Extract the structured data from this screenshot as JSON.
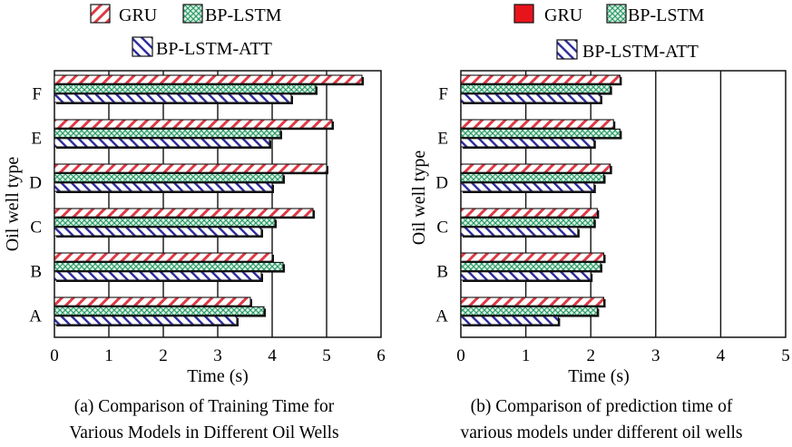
{
  "chart_data": [
    {
      "type": "bar",
      "orientation": "horizontal",
      "categories": [
        "A",
        "B",
        "C",
        "D",
        "E",
        "F"
      ],
      "series": [
        {
          "name": "GRU",
          "values": [
            3.6,
            4.0,
            4.75,
            5.0,
            5.1,
            5.65
          ]
        },
        {
          "name": "BP-LSTM",
          "values": [
            3.85,
            4.2,
            4.05,
            4.2,
            4.15,
            4.8
          ]
        },
        {
          "name": "BP-LSTM-ATT",
          "values": [
            3.35,
            3.8,
            3.8,
            4.0,
            3.95,
            4.35
          ]
        }
      ],
      "xlabel": "Time (s)",
      "ylabel": "Oil well type",
      "xlim": [
        0,
        6
      ],
      "xticks": [
        "0",
        "1",
        "2",
        "3",
        "4",
        "5",
        "6"
      ],
      "grid": "vertical",
      "legend": "top",
      "caption": [
        "(a) Comparison of Training Time for",
        "Various Models in Different Oil Wells"
      ]
    },
    {
      "type": "bar",
      "orientation": "horizontal",
      "categories": [
        "A",
        "B",
        "C",
        "D",
        "E",
        "F"
      ],
      "series": [
        {
          "name": "GRU",
          "values": [
            2.2,
            2.2,
            2.1,
            2.3,
            2.35,
            2.45
          ]
        },
        {
          "name": "BP-LSTM",
          "values": [
            2.1,
            2.15,
            2.05,
            2.2,
            2.45,
            2.3
          ]
        },
        {
          "name": "BP-LSTM-ATT",
          "values": [
            1.5,
            2.0,
            1.8,
            2.05,
            2.05,
            2.15
          ]
        }
      ],
      "xlabel": "Time (s)",
      "ylabel": "Oil well type",
      "xlim": [
        0,
        5
      ],
      "xticks": [
        "0",
        "1",
        "2",
        "3",
        "4",
        "5"
      ],
      "grid": "vertical",
      "legend": "top",
      "caption": [
        "(b) Comparison of prediction time of",
        "various models under different oil wells"
      ]
    }
  ],
  "colors": {
    "gru_stripe": "#e03a46",
    "gru_swatch_b": "#e8141c",
    "lstm_check": "#2f9e6b",
    "att_stripe": "#2c2a9c",
    "frame": "#111111"
  }
}
